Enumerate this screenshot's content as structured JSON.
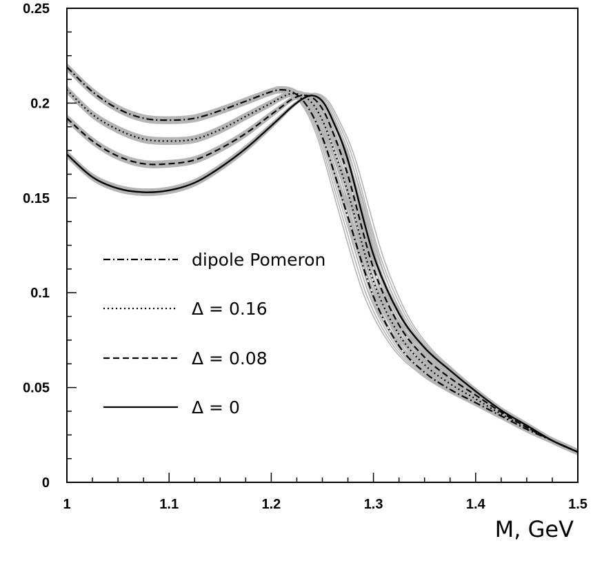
{
  "chart_data": {
    "type": "line",
    "title": "",
    "xlabel": "M, GeV",
    "ylabel": "",
    "xlim": [
      1.0,
      1.5
    ],
    "ylim": [
      0.0,
      0.25
    ],
    "grid": false,
    "legend_position": "center-left",
    "x_ticks": [
      1.0,
      1.1,
      1.2,
      1.3,
      1.4,
      1.5
    ],
    "x_tick_labels": [
      "1",
      "1.1",
      "1.2",
      "1.3",
      "1.4",
      "1.5"
    ],
    "y_ticks": [
      0.0,
      0.05,
      0.1,
      0.15,
      0.2,
      0.25
    ],
    "y_tick_labels": [
      "0",
      "0.05",
      "0.1",
      "0.15",
      "0.2",
      "0.25"
    ],
    "band_color": "#b4b4b4",
    "line_color": "#000000",
    "series": [
      {
        "name": "dipole Pomeron",
        "legend_label": "dipole Pomeron",
        "style": "dashdot",
        "x": [
          1.0,
          1.025,
          1.05,
          1.075,
          1.1,
          1.125,
          1.15,
          1.175,
          1.2,
          1.21,
          1.22,
          1.23,
          1.24,
          1.25,
          1.26,
          1.275,
          1.3,
          1.325,
          1.35,
          1.375,
          1.4,
          1.425,
          1.45,
          1.475,
          1.5
        ],
        "y": [
          0.219,
          0.206,
          0.197,
          0.192,
          0.191,
          0.192,
          0.196,
          0.201,
          0.206,
          0.207,
          0.206,
          0.202,
          0.194,
          0.182,
          0.166,
          0.14,
          0.098,
          0.072,
          0.058,
          0.049,
          0.042,
          0.035,
          0.028,
          0.022,
          0.016
        ]
      },
      {
        "name": "Δ = 0.16",
        "legend_label": "Δ = 0.16",
        "style": "dotted",
        "x": [
          1.0,
          1.025,
          1.05,
          1.075,
          1.1,
          1.125,
          1.15,
          1.175,
          1.2,
          1.21,
          1.22,
          1.23,
          1.24,
          1.25,
          1.26,
          1.275,
          1.3,
          1.325,
          1.35,
          1.375,
          1.4,
          1.425,
          1.45,
          1.475,
          1.5
        ],
        "y": [
          0.207,
          0.194,
          0.186,
          0.181,
          0.18,
          0.181,
          0.186,
          0.193,
          0.2,
          0.203,
          0.205,
          0.204,
          0.2,
          0.191,
          0.177,
          0.153,
          0.106,
          0.078,
          0.062,
          0.052,
          0.044,
          0.036,
          0.029,
          0.022,
          0.016
        ]
      },
      {
        "name": "Δ = 0.08",
        "legend_label": "Δ = 0.08",
        "style": "dashed",
        "x": [
          1.0,
          1.025,
          1.05,
          1.075,
          1.1,
          1.125,
          1.15,
          1.175,
          1.2,
          1.21,
          1.22,
          1.23,
          1.24,
          1.25,
          1.26,
          1.275,
          1.3,
          1.325,
          1.35,
          1.375,
          1.4,
          1.425,
          1.45,
          1.475,
          1.5
        ],
        "y": [
          0.192,
          0.18,
          0.172,
          0.168,
          0.168,
          0.17,
          0.176,
          0.184,
          0.194,
          0.198,
          0.202,
          0.204,
          0.203,
          0.197,
          0.185,
          0.162,
          0.113,
          0.083,
          0.066,
          0.055,
          0.046,
          0.037,
          0.029,
          0.022,
          0.016
        ]
      },
      {
        "name": "Δ = 0",
        "legend_label": "Δ = 0",
        "style": "solid",
        "x": [
          1.0,
          1.025,
          1.05,
          1.075,
          1.1,
          1.125,
          1.15,
          1.175,
          1.2,
          1.21,
          1.22,
          1.23,
          1.24,
          1.25,
          1.26,
          1.275,
          1.3,
          1.325,
          1.35,
          1.375,
          1.4,
          1.425,
          1.45,
          1.475,
          1.5
        ],
        "y": [
          0.173,
          0.161,
          0.155,
          0.153,
          0.154,
          0.158,
          0.166,
          0.176,
          0.188,
          0.193,
          0.198,
          0.202,
          0.204,
          0.201,
          0.191,
          0.17,
          0.12,
          0.089,
          0.071,
          0.059,
          0.048,
          0.038,
          0.03,
          0.022,
          0.016
        ]
      }
    ]
  }
}
